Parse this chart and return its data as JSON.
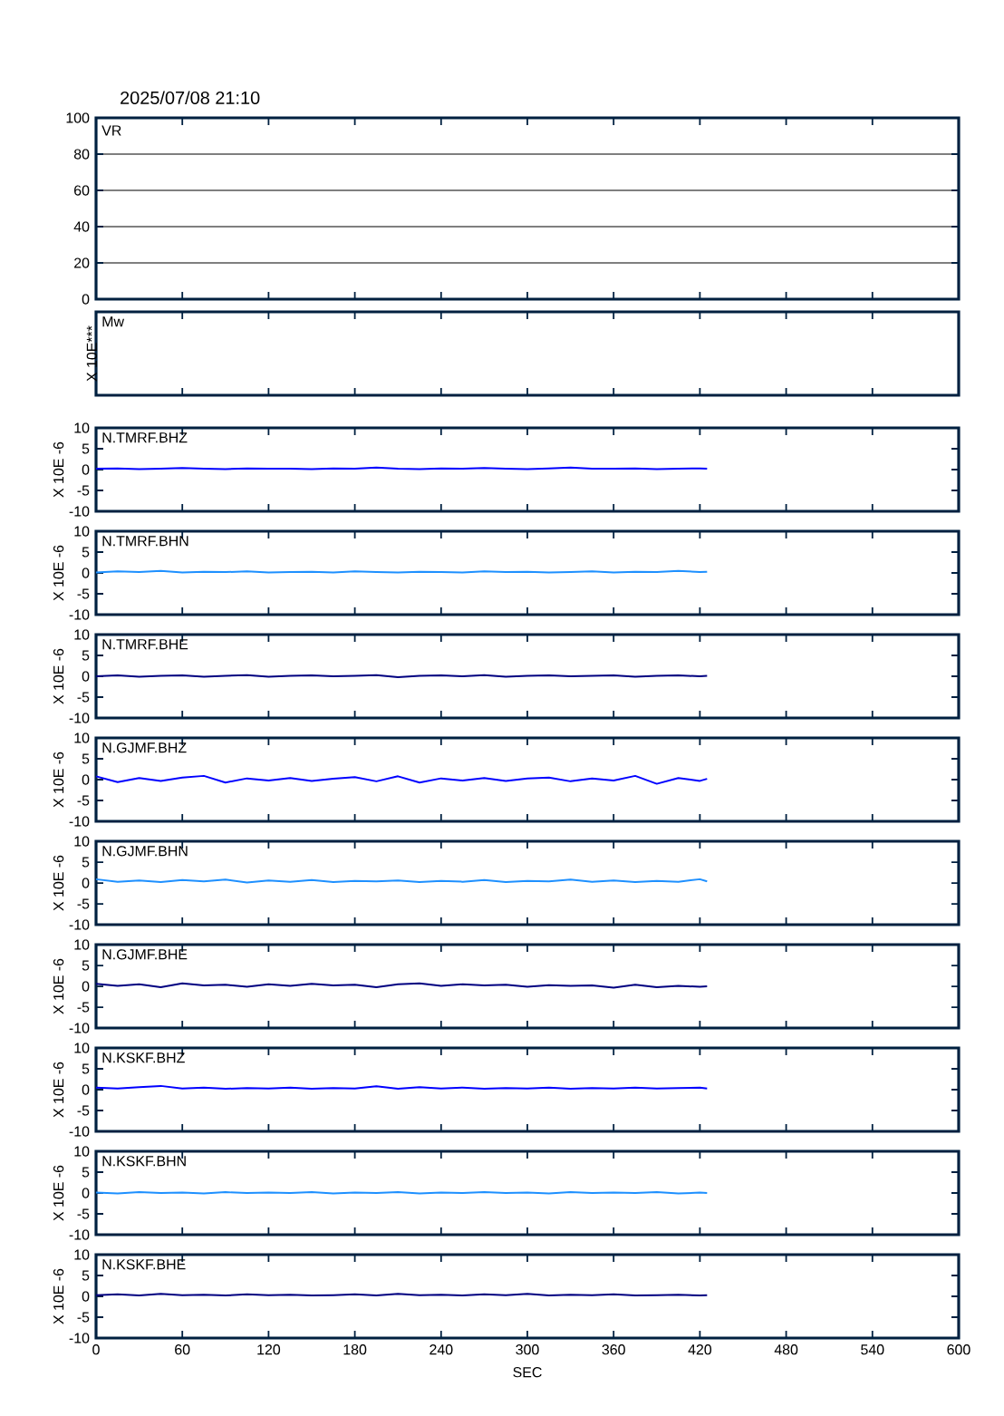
{
  "chart_data": [
    {
      "type": "line",
      "title": "2025/07/08 21:10",
      "annotations": [
        "VR"
      ],
      "xlim": [
        0,
        600
      ],
      "xticks": [
        0,
        60,
        120,
        180,
        240,
        300,
        360,
        420,
        480,
        540,
        600
      ],
      "ylim": [
        0,
        100
      ],
      "yticks": [
        0,
        20,
        40,
        60,
        80,
        100
      ],
      "grid": "y",
      "tick_labels": "y"
    },
    {
      "type": "other",
      "annotations": [
        "Mw"
      ],
      "ylabel": "X 10E***"
    },
    {
      "type": "line",
      "annotations": [
        "N.TMRF.BHZ"
      ],
      "ylabel": "X 10E -6",
      "xlim": [
        0,
        600
      ],
      "xticks": [
        0,
        60,
        120,
        180,
        240,
        300,
        360,
        420,
        480,
        540,
        600
      ],
      "ylim": [
        -10,
        10
      ],
      "yticks": [
        -10,
        -5,
        0,
        5,
        10
      ],
      "tick_labels": "y",
      "x": [
        0,
        15,
        30,
        45,
        60,
        75,
        90,
        105,
        120,
        135,
        150,
        165,
        180,
        195,
        210,
        225,
        240,
        255,
        270,
        285,
        300,
        315,
        330,
        345,
        360,
        375,
        390,
        405,
        420,
        425
      ],
      "series": [
        {
          "color": "#0000ff",
          "values": [
            0.2,
            0.3,
            0.1,
            0.2,
            0.4,
            0.2,
            0.1,
            0.3,
            0.2,
            0.2,
            0.1,
            0.3,
            0.2,
            0.5,
            0.2,
            0.1,
            0.3,
            0.2,
            0.4,
            0.2,
            0.1,
            0.3,
            0.5,
            0.2,
            0.2,
            0.3,
            0.1,
            0.2,
            0.3,
            0.2
          ]
        }
      ]
    },
    {
      "type": "line",
      "annotations": [
        "N.TMRF.BHN"
      ],
      "ylabel": "X 10E -6",
      "xlim": [
        0,
        600
      ],
      "xticks": [
        0,
        60,
        120,
        180,
        240,
        300,
        360,
        420,
        480,
        540,
        600
      ],
      "ylim": [
        -10,
        10
      ],
      "yticks": [
        -10,
        -5,
        0,
        5,
        10
      ],
      "tick_labels": "y",
      "x": [
        0,
        15,
        30,
        45,
        60,
        75,
        90,
        105,
        120,
        135,
        150,
        165,
        180,
        195,
        210,
        225,
        240,
        255,
        270,
        285,
        300,
        315,
        330,
        345,
        360,
        375,
        390,
        405,
        420,
        425
      ],
      "series": [
        {
          "color": "#1e90ff",
          "values": [
            0.1,
            0.4,
            0.2,
            0.5,
            0.1,
            0.3,
            0.2,
            0.4,
            0.1,
            0.2,
            0.3,
            0.1,
            0.4,
            0.2,
            0.1,
            0.3,
            0.2,
            0.1,
            0.4,
            0.2,
            0.3,
            0.1,
            0.2,
            0.4,
            0.1,
            0.3,
            0.2,
            0.5,
            0.2,
            0.3
          ]
        }
      ]
    },
    {
      "type": "line",
      "annotations": [
        "N.TMRF.BHE"
      ],
      "ylabel": "X 10E -6",
      "xlim": [
        0,
        600
      ],
      "xticks": [
        0,
        60,
        120,
        180,
        240,
        300,
        360,
        420,
        480,
        540,
        600
      ],
      "ylim": [
        -10,
        10
      ],
      "yticks": [
        -10,
        -5,
        0,
        5,
        10
      ],
      "tick_labels": "y",
      "x": [
        0,
        15,
        30,
        45,
        60,
        75,
        90,
        105,
        120,
        135,
        150,
        165,
        180,
        195,
        210,
        225,
        240,
        255,
        270,
        285,
        300,
        315,
        330,
        345,
        360,
        375,
        390,
        405,
        420,
        425
      ],
      "series": [
        {
          "color": "#000080",
          "values": [
            0.0,
            0.2,
            -0.1,
            0.1,
            0.2,
            -0.1,
            0.1,
            0.3,
            -0.1,
            0.1,
            0.2,
            0.0,
            0.1,
            0.3,
            -0.2,
            0.1,
            0.2,
            0.0,
            0.3,
            -0.1,
            0.1,
            0.2,
            0.0,
            0.1,
            0.2,
            -0.1,
            0.1,
            0.2,
            0.0,
            0.1
          ]
        }
      ]
    },
    {
      "type": "line",
      "annotations": [
        "N.GJMF.BHZ"
      ],
      "ylabel": "X 10E -6",
      "xlim": [
        0,
        600
      ],
      "xticks": [
        0,
        60,
        120,
        180,
        240,
        300,
        360,
        420,
        480,
        540,
        600
      ],
      "ylim": [
        -10,
        10
      ],
      "yticks": [
        -10,
        -5,
        0,
        5,
        10
      ],
      "tick_labels": "y",
      "x": [
        0,
        15,
        30,
        45,
        60,
        75,
        90,
        105,
        120,
        135,
        150,
        165,
        180,
        195,
        210,
        225,
        240,
        255,
        270,
        285,
        300,
        315,
        330,
        345,
        360,
        375,
        390,
        405,
        420,
        425
      ],
      "series": [
        {
          "color": "#0000ff",
          "values": [
            0.8,
            -0.6,
            0.4,
            -0.3,
            0.5,
            0.9,
            -0.7,
            0.3,
            -0.2,
            0.4,
            -0.3,
            0.2,
            0.6,
            -0.4,
            0.8,
            -0.7,
            0.3,
            -0.2,
            0.4,
            -0.3,
            0.3,
            0.5,
            -0.4,
            0.3,
            -0.2,
            0.9,
            -1.0,
            0.4,
            -0.3,
            0.2
          ]
        }
      ]
    },
    {
      "type": "line",
      "annotations": [
        "N.GJMF.BHN"
      ],
      "ylabel": "X 10E -6",
      "xlim": [
        0,
        600
      ],
      "xticks": [
        0,
        60,
        120,
        180,
        240,
        300,
        360,
        420,
        480,
        540,
        600
      ],
      "ylim": [
        -10,
        10
      ],
      "yticks": [
        -10,
        -5,
        0,
        5,
        10
      ],
      "tick_labels": "y",
      "x": [
        0,
        15,
        30,
        45,
        60,
        75,
        90,
        105,
        120,
        135,
        150,
        165,
        180,
        195,
        210,
        225,
        240,
        255,
        270,
        285,
        300,
        315,
        330,
        345,
        360,
        375,
        390,
        405,
        420,
        425
      ],
      "series": [
        {
          "color": "#1e90ff",
          "values": [
            0.9,
            0.3,
            0.6,
            0.2,
            0.7,
            0.4,
            0.8,
            0.1,
            0.6,
            0.3,
            0.7,
            0.2,
            0.5,
            0.4,
            0.6,
            0.2,
            0.5,
            0.3,
            0.7,
            0.2,
            0.5,
            0.4,
            0.8,
            0.3,
            0.6,
            0.2,
            0.5,
            0.3,
            0.9,
            0.4
          ]
        }
      ]
    },
    {
      "type": "line",
      "annotations": [
        "N.GJMF.BHE"
      ],
      "ylabel": "X 10E -6",
      "xlim": [
        0,
        600
      ],
      "xticks": [
        0,
        60,
        120,
        180,
        240,
        300,
        360,
        420,
        480,
        540,
        600
      ],
      "ylim": [
        -10,
        10
      ],
      "yticks": [
        -10,
        -5,
        0,
        5,
        10
      ],
      "tick_labels": "y",
      "x": [
        0,
        15,
        30,
        45,
        60,
        75,
        90,
        105,
        120,
        135,
        150,
        165,
        180,
        195,
        210,
        225,
        240,
        255,
        270,
        285,
        300,
        315,
        330,
        345,
        360,
        375,
        390,
        405,
        420,
        425
      ],
      "series": [
        {
          "color": "#000080",
          "values": [
            0.6,
            0.1,
            0.5,
            -0.2,
            0.7,
            0.2,
            0.4,
            -0.1,
            0.5,
            0.1,
            0.6,
            0.2,
            0.4,
            -0.2,
            0.5,
            0.7,
            0.1,
            0.5,
            0.2,
            0.4,
            -0.1,
            0.3,
            0.1,
            0.2,
            -0.3,
            0.4,
            -0.2,
            0.1,
            -0.1,
            0.0
          ]
        }
      ]
    },
    {
      "type": "line",
      "annotations": [
        "N.KSKF.BHZ"
      ],
      "ylabel": "X 10E -6",
      "xlim": [
        0,
        600
      ],
      "xticks": [
        0,
        60,
        120,
        180,
        240,
        300,
        360,
        420,
        480,
        540,
        600
      ],
      "ylim": [
        -10,
        10
      ],
      "yticks": [
        -10,
        -5,
        0,
        5,
        10
      ],
      "tick_labels": "y",
      "x": [
        0,
        15,
        30,
        45,
        60,
        75,
        90,
        105,
        120,
        135,
        150,
        165,
        180,
        195,
        210,
        225,
        240,
        255,
        270,
        285,
        300,
        315,
        330,
        345,
        360,
        375,
        390,
        405,
        420,
        425
      ],
      "series": [
        {
          "color": "#0000ff",
          "values": [
            0.5,
            0.3,
            0.6,
            0.9,
            0.3,
            0.5,
            0.2,
            0.4,
            0.3,
            0.5,
            0.2,
            0.4,
            0.3,
            0.8,
            0.2,
            0.6,
            0.3,
            0.5,
            0.2,
            0.4,
            0.3,
            0.5,
            0.2,
            0.4,
            0.3,
            0.5,
            0.3,
            0.4,
            0.5,
            0.3
          ]
        }
      ]
    },
    {
      "type": "line",
      "annotations": [
        "N.KSKF.BHN"
      ],
      "ylabel": "X 10E -6",
      "xlim": [
        0,
        600
      ],
      "xticks": [
        0,
        60,
        120,
        180,
        240,
        300,
        360,
        420,
        480,
        540,
        600
      ],
      "ylim": [
        -10,
        10
      ],
      "yticks": [
        -10,
        -5,
        0,
        5,
        10
      ],
      "tick_labels": "y",
      "x": [
        0,
        15,
        30,
        45,
        60,
        75,
        90,
        105,
        120,
        135,
        150,
        165,
        180,
        195,
        210,
        225,
        240,
        255,
        270,
        285,
        300,
        315,
        330,
        345,
        360,
        375,
        390,
        405,
        420,
        425
      ],
      "series": [
        {
          "color": "#1e90ff",
          "values": [
            0.1,
            -0.1,
            0.2,
            0.0,
            0.1,
            -0.1,
            0.2,
            0.0,
            0.1,
            0.0,
            0.2,
            -0.1,
            0.1,
            0.0,
            0.2,
            -0.1,
            0.1,
            0.0,
            0.2,
            0.0,
            0.1,
            -0.1,
            0.2,
            0.0,
            0.1,
            0.0,
            0.2,
            -0.1,
            0.1,
            0.0
          ]
        }
      ]
    },
    {
      "type": "line",
      "annotations": [
        "N.KSKF.BHE"
      ],
      "xlabel": "SEC",
      "ylabel": "X 10E -6",
      "xlim": [
        0,
        600
      ],
      "xticks": [
        0,
        60,
        120,
        180,
        240,
        300,
        360,
        420,
        480,
        540,
        600
      ],
      "ylim": [
        -10,
        10
      ],
      "yticks": [
        -10,
        -5,
        0,
        5,
        10
      ],
      "x": [
        0,
        15,
        30,
        45,
        60,
        75,
        90,
        105,
        120,
        135,
        150,
        165,
        180,
        195,
        210,
        225,
        240,
        255,
        270,
        285,
        300,
        315,
        330,
        345,
        360,
        375,
        390,
        405,
        420,
        425
      ],
      "series": [
        {
          "color": "#000080",
          "values": [
            0.3,
            0.5,
            0.2,
            0.6,
            0.3,
            0.4,
            0.2,
            0.5,
            0.3,
            0.4,
            0.2,
            0.3,
            0.5,
            0.2,
            0.6,
            0.3,
            0.4,
            0.2,
            0.5,
            0.3,
            0.6,
            0.2,
            0.4,
            0.3,
            0.5,
            0.2,
            0.3,
            0.4,
            0.2,
            0.3
          ]
        }
      ]
    }
  ]
}
